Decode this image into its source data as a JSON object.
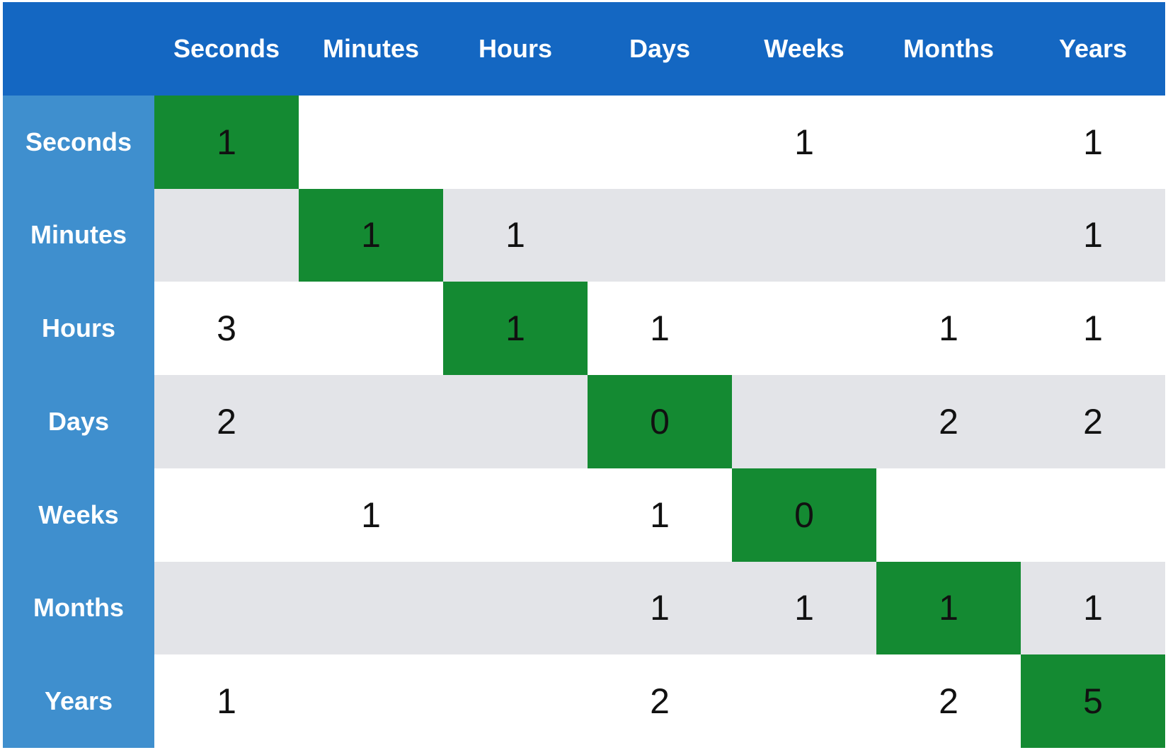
{
  "chart_data": {
    "type": "table",
    "columns": [
      "Seconds",
      "Minutes",
      "Hours",
      "Days",
      "Weeks",
      "Months",
      "Years"
    ],
    "rows": [
      {
        "label": "Seconds",
        "values": [
          "1",
          "",
          "",
          "",
          "1",
          "",
          "1"
        ]
      },
      {
        "label": "Minutes",
        "values": [
          "",
          "1",
          "1",
          "",
          "",
          "",
          "1"
        ]
      },
      {
        "label": "Hours",
        "values": [
          "3",
          "",
          "1",
          "1",
          "",
          "1",
          "1"
        ]
      },
      {
        "label": "Days",
        "values": [
          "2",
          "",
          "",
          "0",
          "",
          "2",
          "2"
        ]
      },
      {
        "label": "Weeks",
        "values": [
          "",
          "1",
          "",
          "1",
          "0",
          "",
          ""
        ]
      },
      {
        "label": "Months",
        "values": [
          "",
          "",
          "",
          "1",
          "1",
          "1",
          "1"
        ]
      },
      {
        "label": "Years",
        "values": [
          "1",
          "",
          "",
          "2",
          "",
          "2",
          "5"
        ]
      }
    ],
    "colors": {
      "column_header": "#1467c2",
      "row_header": "#3f8fce",
      "diagonal": "#148a32",
      "stripe": "#e3e4e8",
      "background": "#ffffff"
    }
  }
}
